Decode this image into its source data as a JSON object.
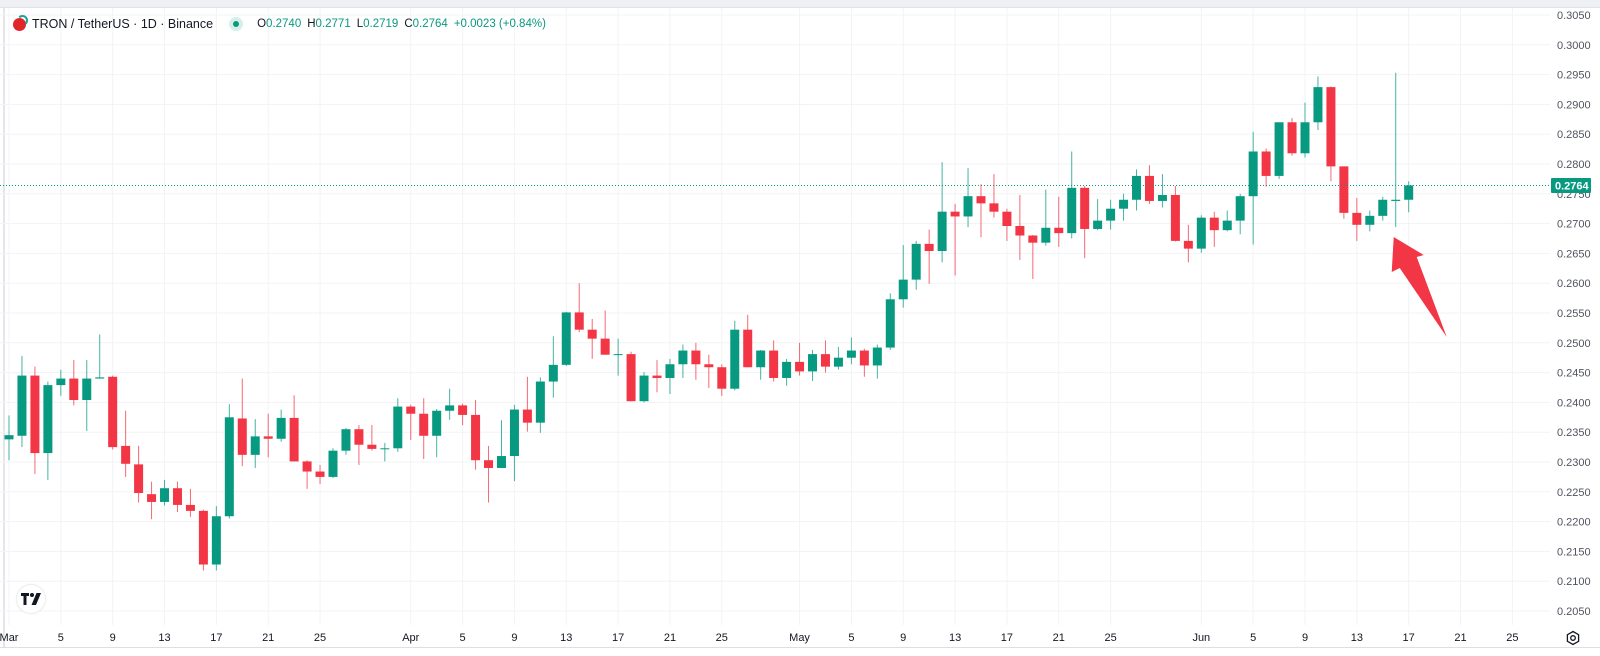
{
  "legend": {
    "symbol": "TRON / TetherUS · 1D · Binance",
    "open_key": "O",
    "open": "0.2740",
    "high_key": "H",
    "high": "0.2771",
    "low_key": "L",
    "low": "0.2719",
    "close_key": "C",
    "close": "0.2764",
    "change": "+0.0023 (+0.84%)"
  },
  "icons": {
    "symbol_logo": "tron-logo",
    "status": "market-open-dot",
    "brand": "tradingview-logo",
    "settings": "settings-gear-icon"
  },
  "colors": {
    "up": "#089981",
    "down": "#F23645",
    "last_price": "#089981",
    "annotation_arrow": "#F23645"
  },
  "chart_data": {
    "type": "candlestick",
    "title": "TRON / TetherUS · 1D · Binance",
    "ylim": [
      0.203,
      0.306
    ],
    "grid": true,
    "y_ticks": [
      "0.3050",
      "0.3000",
      "0.2950",
      "0.2900",
      "0.2850",
      "0.2800",
      "0.2750",
      "0.2700",
      "0.2650",
      "0.2600",
      "0.2550",
      "0.2500",
      "0.2450",
      "0.2400",
      "0.2350",
      "0.2300",
      "0.2250",
      "0.2200",
      "0.2150",
      "0.2100",
      "0.2050"
    ],
    "x_ticks": [
      {
        "label": "Mar",
        "candle_index": 0
      },
      {
        "label": "5",
        "candle_index": 4
      },
      {
        "label": "9",
        "candle_index": 8
      },
      {
        "label": "13",
        "candle_index": 12
      },
      {
        "label": "17",
        "candle_index": 16
      },
      {
        "label": "21",
        "candle_index": 20
      },
      {
        "label": "25",
        "candle_index": 24
      },
      {
        "label": "Apr",
        "candle_index": 31
      },
      {
        "label": "5",
        "candle_index": 35
      },
      {
        "label": "9",
        "candle_index": 39
      },
      {
        "label": "13",
        "candle_index": 43
      },
      {
        "label": "17",
        "candle_index": 47
      },
      {
        "label": "21",
        "candle_index": 51
      },
      {
        "label": "25",
        "candle_index": 55
      },
      {
        "label": "May",
        "candle_index": 61
      },
      {
        "label": "5",
        "candle_index": 65
      },
      {
        "label": "9",
        "candle_index": 69
      },
      {
        "label": "13",
        "candle_index": 73
      },
      {
        "label": "17",
        "candle_index": 77
      },
      {
        "label": "21",
        "candle_index": 81
      },
      {
        "label": "25",
        "candle_index": 85
      },
      {
        "label": "Jun",
        "candle_index": 92
      },
      {
        "label": "5",
        "candle_index": 96
      },
      {
        "label": "9",
        "candle_index": 100
      },
      {
        "label": "13",
        "candle_index": 104
      },
      {
        "label": "17",
        "candle_index": 108
      },
      {
        "label": "21",
        "candle_index": 112
      },
      {
        "label": "25",
        "candle_index": 116
      }
    ],
    "last_price": "0.2764",
    "candle_fields": [
      "open",
      "high",
      "low",
      "close"
    ],
    "candles": [
      [
        0.2338,
        0.2378,
        0.2303,
        0.2345
      ],
      [
        0.2344,
        0.2478,
        0.2325,
        0.2445
      ],
      [
        0.2445,
        0.246,
        0.228,
        0.2315
      ],
      [
        0.2315,
        0.2435,
        0.227,
        0.2429
      ],
      [
        0.2429,
        0.2455,
        0.2411,
        0.244
      ],
      [
        0.244,
        0.2471,
        0.2395,
        0.2404
      ],
      [
        0.2404,
        0.2471,
        0.2352,
        0.244
      ],
      [
        0.244,
        0.2514,
        0.244,
        0.2442
      ],
      [
        0.2443,
        0.2445,
        0.2321,
        0.2325
      ],
      [
        0.2327,
        0.2386,
        0.2275,
        0.2297
      ],
      [
        0.2296,
        0.2327,
        0.2232,
        0.2248
      ],
      [
        0.2246,
        0.2267,
        0.2204,
        0.2233
      ],
      [
        0.2233,
        0.227,
        0.2227,
        0.2256
      ],
      [
        0.2256,
        0.2267,
        0.2216,
        0.2228
      ],
      [
        0.2228,
        0.2255,
        0.2208,
        0.2218
      ],
      [
        0.2218,
        0.222,
        0.2118,
        0.2128
      ],
      [
        0.2128,
        0.2226,
        0.2118,
        0.2209
      ],
      [
        0.2209,
        0.2397,
        0.2205,
        0.2375
      ],
      [
        0.2373,
        0.244,
        0.2293,
        0.2312
      ],
      [
        0.2312,
        0.2372,
        0.229,
        0.2343
      ],
      [
        0.2343,
        0.2381,
        0.2308,
        0.2339
      ],
      [
        0.2339,
        0.2388,
        0.2334,
        0.2374
      ],
      [
        0.2374,
        0.2412,
        0.2301,
        0.2301
      ],
      [
        0.2301,
        0.2303,
        0.2255,
        0.2284
      ],
      [
        0.2284,
        0.2295,
        0.2263,
        0.2275
      ],
      [
        0.2275,
        0.2323,
        0.2273,
        0.2319
      ],
      [
        0.2319,
        0.2357,
        0.2312,
        0.2355
      ],
      [
        0.2355,
        0.2362,
        0.2295,
        0.2329
      ],
      [
        0.2329,
        0.2362,
        0.2319,
        0.2322
      ],
      [
        0.2322,
        0.2332,
        0.2301,
        0.2323
      ],
      [
        0.2323,
        0.2407,
        0.2317,
        0.2393
      ],
      [
        0.2393,
        0.2396,
        0.2337,
        0.2381
      ],
      [
        0.2381,
        0.2407,
        0.2305,
        0.2344
      ],
      [
        0.2344,
        0.2389,
        0.2308,
        0.2386
      ],
      [
        0.2386,
        0.2423,
        0.2371,
        0.2395
      ],
      [
        0.2395,
        0.2398,
        0.2362,
        0.2379
      ],
      [
        0.2379,
        0.2404,
        0.2287,
        0.2303
      ],
      [
        0.2303,
        0.2327,
        0.2232,
        0.229
      ],
      [
        0.229,
        0.237,
        0.229,
        0.231
      ],
      [
        0.231,
        0.2396,
        0.2268,
        0.2388
      ],
      [
        0.2388,
        0.2443,
        0.2351,
        0.2366
      ],
      [
        0.2366,
        0.2442,
        0.2349,
        0.2435
      ],
      [
        0.2435,
        0.2511,
        0.2408,
        0.2463
      ],
      [
        0.2463,
        0.2552,
        0.2461,
        0.2551
      ],
      [
        0.2551,
        0.26,
        0.2518,
        0.2522
      ],
      [
        0.2522,
        0.254,
        0.2473,
        0.2507
      ],
      [
        0.2507,
        0.2554,
        0.248,
        0.248
      ],
      [
        0.248,
        0.2507,
        0.2445,
        0.2481
      ],
      [
        0.2481,
        0.2485,
        0.2402,
        0.2402
      ],
      [
        0.2402,
        0.2451,
        0.24,
        0.2445
      ],
      [
        0.2445,
        0.2471,
        0.2417,
        0.2441
      ],
      [
        0.2441,
        0.2473,
        0.2414,
        0.2464
      ],
      [
        0.2464,
        0.2497,
        0.2441,
        0.2487
      ],
      [
        0.2487,
        0.25,
        0.2438,
        0.2464
      ],
      [
        0.2464,
        0.248,
        0.2424,
        0.2459
      ],
      [
        0.2459,
        0.2464,
        0.2411,
        0.2423
      ],
      [
        0.2423,
        0.2537,
        0.242,
        0.2522
      ],
      [
        0.2522,
        0.2547,
        0.2459,
        0.2459
      ],
      [
        0.2459,
        0.2488,
        0.2438,
        0.2487
      ],
      [
        0.2487,
        0.2504,
        0.2435,
        0.2441
      ],
      [
        0.2441,
        0.2473,
        0.2428,
        0.2468
      ],
      [
        0.2468,
        0.25,
        0.2445,
        0.2452
      ],
      [
        0.2452,
        0.2488,
        0.2436,
        0.2481
      ],
      [
        0.2481,
        0.2504,
        0.245,
        0.246
      ],
      [
        0.246,
        0.2493,
        0.2455,
        0.2475
      ],
      [
        0.2475,
        0.2509,
        0.2464,
        0.2487
      ],
      [
        0.2487,
        0.249,
        0.2443,
        0.2462
      ],
      [
        0.2462,
        0.2497,
        0.244,
        0.2492
      ],
      [
        0.2492,
        0.2583,
        0.2488,
        0.2573
      ],
      [
        0.2573,
        0.2664,
        0.2559,
        0.2606
      ],
      [
        0.2606,
        0.2671,
        0.2589,
        0.2666
      ],
      [
        0.2666,
        0.269,
        0.2599,
        0.2654
      ],
      [
        0.2654,
        0.2803,
        0.2635,
        0.272
      ],
      [
        0.272,
        0.2733,
        0.2613,
        0.2712
      ],
      [
        0.2712,
        0.2793,
        0.2694,
        0.2746
      ],
      [
        0.2746,
        0.2766,
        0.2677,
        0.2734
      ],
      [
        0.2734,
        0.2783,
        0.271,
        0.272
      ],
      [
        0.272,
        0.2725,
        0.2671,
        0.2696
      ],
      [
        0.2696,
        0.2748,
        0.2639,
        0.268
      ],
      [
        0.268,
        0.2681,
        0.2607,
        0.2668
      ],
      [
        0.2668,
        0.2757,
        0.2663,
        0.2693
      ],
      [
        0.2693,
        0.2745,
        0.2661,
        0.2684
      ],
      [
        0.2684,
        0.2821,
        0.2675,
        0.276
      ],
      [
        0.276,
        0.2763,
        0.2642,
        0.2691
      ],
      [
        0.2691,
        0.2741,
        0.2689,
        0.2705
      ],
      [
        0.2705,
        0.274,
        0.269,
        0.2725
      ],
      [
        0.2725,
        0.275,
        0.2705,
        0.274
      ],
      [
        0.274,
        0.2791,
        0.2722,
        0.278
      ],
      [
        0.278,
        0.2798,
        0.2733,
        0.2738
      ],
      [
        0.2738,
        0.2783,
        0.2727,
        0.2748
      ],
      [
        0.2748,
        0.2763,
        0.267,
        0.2671
      ],
      [
        0.2671,
        0.2698,
        0.2635,
        0.2658
      ],
      [
        0.2658,
        0.2714,
        0.2651,
        0.271
      ],
      [
        0.271,
        0.272,
        0.2661,
        0.2689
      ],
      [
        0.2689,
        0.2722,
        0.2687,
        0.2705
      ],
      [
        0.2705,
        0.275,
        0.2682,
        0.2746
      ],
      [
        0.2746,
        0.2854,
        0.2665,
        0.2821
      ],
      [
        0.2821,
        0.2826,
        0.2762,
        0.278
      ],
      [
        0.278,
        0.287,
        0.2775,
        0.287
      ],
      [
        0.287,
        0.2877,
        0.2814,
        0.2818
      ],
      [
        0.2818,
        0.2903,
        0.2811,
        0.287
      ],
      [
        0.287,
        0.2947,
        0.2857,
        0.2929
      ],
      [
        0.2929,
        0.293,
        0.2771,
        0.2796
      ],
      [
        0.2796,
        0.2796,
        0.2708,
        0.2718
      ],
      [
        0.2718,
        0.2743,
        0.2671,
        0.2698
      ],
      [
        0.2698,
        0.2722,
        0.2687,
        0.2713
      ],
      [
        0.2713,
        0.2745,
        0.2705,
        0.274
      ],
      [
        0.2738,
        0.2953,
        0.2694,
        0.274
      ],
      [
        0.274,
        0.2771,
        0.2719,
        0.2764
      ]
    ],
    "annotation": {
      "type": "arrow",
      "points_to_candle_index": 107
    }
  }
}
